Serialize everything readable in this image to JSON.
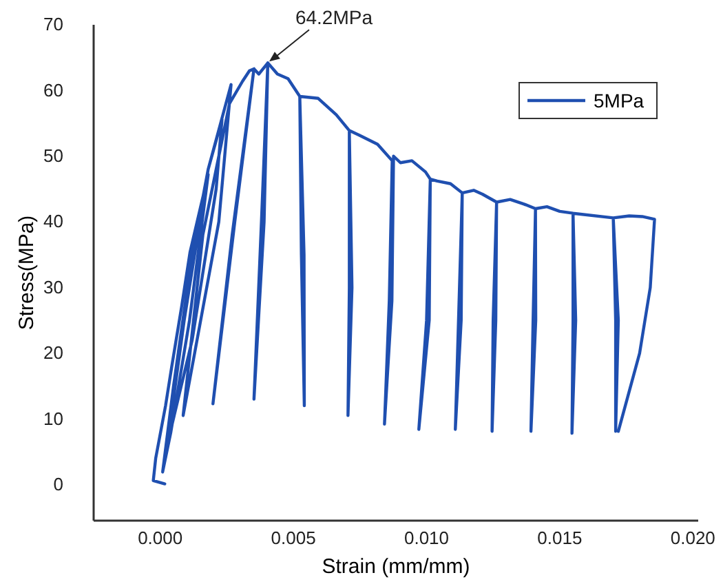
{
  "chart_data": {
    "type": "line",
    "xlabel": "Strain (mm/mm)",
    "ylabel": "Stress(MPa)",
    "xlim": [
      -0.0025,
      0.0202
    ],
    "ylim": [
      -5.5,
      70
    ],
    "xticks": [
      {
        "value": 0,
        "label": "0.000"
      },
      {
        "value": 0.005,
        "label": "0.005"
      },
      {
        "value": 0.01,
        "label": "0.010"
      },
      {
        "value": 0.015,
        "label": "0.015"
      },
      {
        "value": 0.02,
        "label": "0.020"
      }
    ],
    "yticks": [
      0,
      10,
      20,
      30,
      40,
      50,
      60,
      70
    ],
    "grid": false,
    "legend": "top right",
    "marker": "none",
    "line_style": "solid",
    "annotations": [
      {
        "text": "64.2MPa",
        "x": 0.00404,
        "y": 64.2
      }
    ],
    "series": [
      {
        "name": "5MPa",
        "color": "#1f4fb0",
        "x": [
          0.00017,
          -0.00026,
          -0.00017,
          0.0002,
          0.00043,
          0.0008,
          0.00112,
          0.0015,
          0.0018,
          0.0011,
          0.0004,
          9e-05,
          0.0005,
          0.0012,
          0.0018,
          0.00232,
          0.0021,
          0.0012,
          0.00026,
          0.0009,
          0.0018,
          0.00266,
          0.0022,
          0.00086,
          0.0016,
          0.0026,
          0.00309,
          0.00335,
          0.00352,
          0.0027,
          0.00198,
          0.0028,
          0.00352,
          0.0037,
          0.00404,
          0.0038,
          0.00352,
          0.0039,
          0.00404,
          0.0044,
          0.0048,
          0.00524,
          0.0053,
          0.00541,
          0.0054,
          0.00524,
          0.00593,
          0.00661,
          0.0071,
          0.0071,
          0.00705,
          0.0072,
          0.0071,
          0.00747,
          0.00816,
          0.00871,
          0.0086,
          0.00842,
          0.0087,
          0.00876,
          0.00902,
          0.00945,
          0.00996,
          0.01014,
          0.01,
          0.00971,
          0.0101,
          0.01014,
          0.0104,
          0.0109,
          0.01134,
          0.0112,
          0.01108,
          0.0113,
          0.01134,
          0.01177,
          0.0121,
          0.01263,
          0.0125,
          0.01246,
          0.0126,
          0.01263,
          0.01314,
          0.01366,
          0.01409,
          0.014,
          0.01392,
          0.0141,
          0.01409,
          0.01452,
          0.015,
          0.0155,
          0.0155,
          0.01546,
          0.0156,
          0.0155,
          0.01701,
          0.0171,
          0.0171,
          0.0172,
          0.01701,
          0.01761,
          0.0181,
          0.01856,
          0.0184,
          0.018,
          0.0172
        ],
        "values": [
          0.1,
          0.6,
          4,
          12,
          17.9,
          27,
          35.4,
          42,
          47.2,
          25,
          8,
          1.9,
          15,
          35,
          48,
          55.6,
          45,
          22,
          6,
          25,
          48,
          60.9,
          40,
          10.5,
          38,
          58,
          61.4,
          63,
          63.3,
          38,
          12.3,
          40,
          63.3,
          62.5,
          64.2,
          40,
          13,
          40,
          64.2,
          62.5,
          61.8,
          59.1,
          35,
          12,
          35,
          59.1,
          58.8,
          56.3,
          53.9,
          30,
          10.5,
          30,
          53.9,
          53.2,
          51.8,
          49.3,
          28,
          9.2,
          28,
          50,
          49,
          49.3,
          47.6,
          46.5,
          25,
          8.4,
          25,
          46.5,
          46.2,
          45.8,
          44.4,
          25,
          8.4,
          25,
          44.4,
          44.8,
          44.2,
          43,
          25,
          8.1,
          25,
          43,
          43.4,
          42.7,
          42,
          25,
          8.1,
          25,
          42,
          42.3,
          41.6,
          41.3,
          25,
          7.8,
          25,
          41.3,
          40.6,
          25,
          8.1,
          25,
          40.6,
          40.9,
          40.8,
          40.4,
          30,
          20,
          8.1
        ]
      }
    ]
  }
}
